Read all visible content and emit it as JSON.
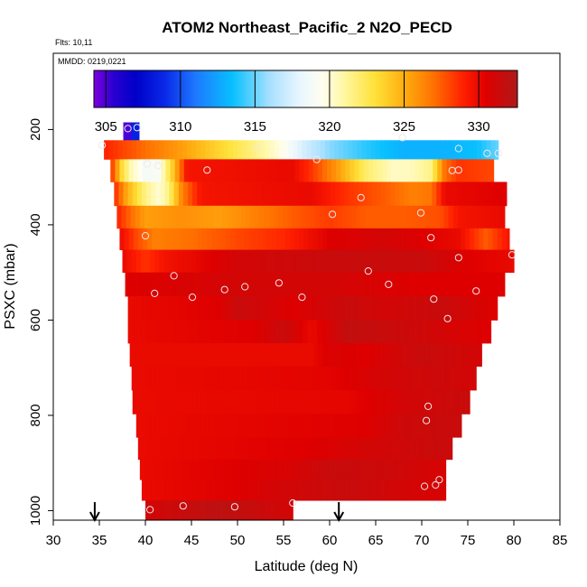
{
  "chart_data": {
    "type": "heatmap",
    "title": "ATOM2 Northeast_Pacific_2 N2O_PECD",
    "flights_note": "Flts: 10,11",
    "date_note": "MMDD: 0219,0221",
    "xlabel": "Latitude (deg N)",
    "ylabel": "PSXC (mbar)",
    "xlim": [
      30,
      85
    ],
    "ylim": [
      1020,
      40
    ],
    "x_ticks": [
      "30",
      "35",
      "40",
      "45",
      "50",
      "55",
      "60",
      "65",
      "70",
      "75",
      "80",
      "85"
    ],
    "y_ticks": [
      "200",
      "400",
      "600",
      "800",
      "1000"
    ],
    "colorbar": {
      "range": [
        304.2,
        332.6
      ],
      "ticks": [
        "305",
        "310",
        "315",
        "320",
        "325",
        "330"
      ],
      "stops": [
        {
          "v": 304.2,
          "c": "#7e00e0"
        },
        {
          "v": 305.5,
          "c": "#2a00d0"
        },
        {
          "v": 307.0,
          "c": "#0000c8"
        },
        {
          "v": 309.0,
          "c": "#0a2ae8"
        },
        {
          "v": 311.0,
          "c": "#1e78ff"
        },
        {
          "v": 313.5,
          "c": "#08c0ff"
        },
        {
          "v": 316.0,
          "c": "#a8e0ff"
        },
        {
          "v": 318.0,
          "c": "#e8f6ff"
        },
        {
          "v": 319.5,
          "c": "#fffef0"
        },
        {
          "v": 321.0,
          "c": "#fff7a0"
        },
        {
          "v": 323.0,
          "c": "#ffe23a"
        },
        {
          "v": 325.0,
          "c": "#ffae10"
        },
        {
          "v": 327.0,
          "c": "#ff7000"
        },
        {
          "v": 329.0,
          "c": "#ff1e00"
        },
        {
          "v": 330.5,
          "c": "#de0000"
        },
        {
          "v": 332.6,
          "c": "#b01818"
        }
      ]
    },
    "arrows_latitude": [
      34.5,
      61.0
    ],
    "rows": [
      {
        "p": 205,
        "lats": [
          37.6,
          39.3
        ],
        "vals": [
          305.0,
          308.5
        ]
      },
      {
        "p": 240,
        "lats": [
          35.5,
          78.3
        ],
        "vals": [
          [
            35.5,
            329
          ],
          [
            40,
            327
          ],
          [
            44,
            325.5
          ],
          [
            48,
            323.5
          ],
          [
            52,
            321.5
          ],
          [
            55,
            319.5
          ],
          [
            57,
            317.5
          ],
          [
            60,
            315.5
          ],
          [
            64,
            314
          ],
          [
            68,
            313
          ],
          [
            72,
            313
          ],
          [
            76,
            313.5
          ],
          [
            78.3,
            315
          ]
        ]
      },
      {
        "p": 285,
        "lats": [
          36.2,
          77.8
        ],
        "vals": [
          [
            36.2,
            329
          ],
          [
            37.5,
            323
          ],
          [
            38.5,
            320.5
          ],
          [
            40,
            318.8
          ],
          [
            41.5,
            319.2
          ],
          [
            43,
            324
          ],
          [
            44.5,
            329.5
          ],
          [
            56,
            330
          ],
          [
            58,
            328.5
          ],
          [
            61,
            325.5
          ],
          [
            64,
            322
          ],
          [
            67,
            320.3
          ],
          [
            69,
            320.5
          ],
          [
            71,
            321.5
          ],
          [
            72.5,
            327
          ],
          [
            74,
            328.5
          ],
          [
            77.8,
            328
          ]
        ]
      },
      {
        "p": 335,
        "lats": [
          36.6,
          79.2
        ],
        "vals": [
          [
            36.6,
            329
          ],
          [
            38,
            325
          ],
          [
            40,
            321.5
          ],
          [
            41.5,
            320
          ],
          [
            42.5,
            321.5
          ],
          [
            44,
            326.5
          ],
          [
            46,
            329.5
          ],
          [
            58,
            330
          ],
          [
            62,
            328.5
          ],
          [
            66,
            327.5
          ],
          [
            69,
            326.5
          ],
          [
            71,
            326.8
          ],
          [
            72.5,
            330
          ],
          [
            79.2,
            330.5
          ]
        ]
      },
      {
        "p": 385,
        "lats": [
          36.9,
          79.0
        ],
        "vals": [
          [
            36.9,
            329
          ],
          [
            38.5,
            327
          ],
          [
            40,
            325.5
          ],
          [
            44,
            326
          ],
          [
            48,
            325.5
          ],
          [
            52,
            326.5
          ],
          [
            56,
            327.5
          ],
          [
            60,
            328.3
          ],
          [
            64,
            327.5
          ],
          [
            68,
            327.5
          ],
          [
            72,
            327.8
          ],
          [
            74,
            329.5
          ],
          [
            79.0,
            330
          ]
        ]
      },
      {
        "p": 430,
        "lats": [
          37.2,
          79.5
        ],
        "vals": [
          [
            37.2,
            330
          ],
          [
            39,
            328
          ],
          [
            41,
            326.5
          ],
          [
            45,
            327
          ],
          [
            50,
            328
          ],
          [
            55,
            328.8
          ],
          [
            60,
            330.5
          ],
          [
            66,
            331
          ],
          [
            70,
            330.5
          ],
          [
            74,
            330
          ],
          [
            77,
            327.5
          ],
          [
            79.5,
            329.5
          ]
        ]
      },
      {
        "p": 475,
        "lats": [
          37.5,
          80.0
        ],
        "vals": [
          [
            37.5,
            330
          ],
          [
            40,
            328.5
          ],
          [
            42,
            329.5
          ],
          [
            50,
            331
          ],
          [
            60,
            331.5
          ],
          [
            70,
            331.5
          ],
          [
            75,
            330.5
          ],
          [
            80.0,
            330
          ]
        ]
      },
      {
        "p": 525,
        "lats": [
          37.8,
          79.0
        ],
        "vals": [
          [
            37.8,
            330.5
          ],
          [
            50,
            331
          ],
          [
            60,
            331
          ],
          [
            70,
            330.5
          ],
          [
            79.0,
            330.5
          ]
        ]
      },
      {
        "p": 575,
        "lats": [
          38.1,
          78.2
        ],
        "vals": [
          [
            38.1,
            330
          ],
          [
            48,
            330.5
          ],
          [
            50,
            331.5
          ],
          [
            56,
            330.5
          ],
          [
            62,
            331.5
          ],
          [
            66,
            331
          ],
          [
            72,
            331.5
          ],
          [
            78.2,
            330.5
          ]
        ]
      },
      {
        "p": 625,
        "lats": [
          38.1,
          77.5
        ],
        "vals": [
          [
            38.1,
            330
          ],
          [
            52,
            330.5
          ],
          [
            55,
            331.5
          ],
          [
            58,
            330
          ],
          [
            62,
            331.8
          ],
          [
            70,
            331.2
          ],
          [
            77.5,
            330.5
          ]
        ]
      },
      {
        "p": 672,
        "lats": [
          38.3,
          76.5
        ],
        "vals": [
          [
            38.3,
            330
          ],
          [
            58,
            330
          ],
          [
            60,
            330.7
          ],
          [
            64,
            330.5
          ],
          [
            70,
            331.5
          ],
          [
            76.5,
            331
          ]
        ]
      },
      {
        "p": 722,
        "lats": [
          38.5,
          75.9
        ],
        "vals": [
          [
            38.5,
            330
          ],
          [
            60,
            330.3
          ],
          [
            66,
            331
          ],
          [
            72,
            331.3
          ],
          [
            75.9,
            331
          ]
        ]
      },
      {
        "p": 772,
        "lats": [
          38.6,
          75.2
        ],
        "vals": [
          [
            38.6,
            330
          ],
          [
            62,
            330.2
          ],
          [
            68,
            331
          ],
          [
            75.2,
            331.5
          ]
        ]
      },
      {
        "p": 822,
        "lats": [
          39.0,
          74.3
        ],
        "vals": [
          [
            39.0,
            330
          ],
          [
            64,
            330.5
          ],
          [
            68,
            331.3
          ],
          [
            74.3,
            331.5
          ]
        ]
      },
      {
        "p": 870,
        "lats": [
          39.2,
          73.3
        ],
        "vals": [
          [
            39.2,
            330
          ],
          [
            58,
            330.5
          ],
          [
            64,
            331
          ],
          [
            73.3,
            331.5
          ]
        ]
      },
      {
        "p": 915,
        "lats": [
          39.4,
          72.6
        ],
        "vals": [
          [
            39.4,
            330
          ],
          [
            56,
            330.8
          ],
          [
            60,
            331.5
          ],
          [
            66,
            331.3
          ],
          [
            72.6,
            330.8
          ]
        ]
      },
      {
        "p": 955,
        "lats": [
          39.6,
          72.6
        ],
        "vals": [
          [
            39.6,
            330
          ],
          [
            50,
            330.5
          ],
          [
            54,
            331
          ],
          [
            62,
            331.5
          ],
          [
            68,
            331
          ],
          [
            72.6,
            330.8
          ]
        ]
      },
      {
        "p": 1002,
        "lats": [
          40.0,
          56.0
        ],
        "vals": [
          [
            40.0,
            331
          ],
          [
            44,
            331.5
          ],
          [
            48,
            332
          ],
          [
            52,
            331.5
          ],
          [
            56.0,
            331
          ]
        ]
      }
    ],
    "samples": [
      [
        38.1,
        198
      ],
      [
        39.1,
        196
      ],
      [
        35.3,
        233
      ],
      [
        52.2,
        238
      ],
      [
        67.9,
        217
      ],
      [
        74.0,
        240
      ],
      [
        77.1,
        250
      ],
      [
        78.3,
        250
      ],
      [
        58.6,
        263
      ],
      [
        40.2,
        272
      ],
      [
        41.4,
        276
      ],
      [
        46.7,
        285
      ],
      [
        73.3,
        286
      ],
      [
        74.0,
        285
      ],
      [
        63.4,
        343
      ],
      [
        60.3,
        378
      ],
      [
        69.9,
        375
      ],
      [
        40.0,
        423
      ],
      [
        71.0,
        427
      ],
      [
        74.0,
        469
      ],
      [
        79.8,
        463
      ],
      [
        43.1,
        507
      ],
      [
        64.2,
        497
      ],
      [
        41.0,
        544
      ],
      [
        45.1,
        552
      ],
      [
        48.6,
        536
      ],
      [
        50.8,
        530
      ],
      [
        54.5,
        522
      ],
      [
        57.0,
        552
      ],
      [
        66.4,
        525
      ],
      [
        71.3,
        556
      ],
      [
        72.8,
        597
      ],
      [
        75.9,
        539
      ],
      [
        70.7,
        781
      ],
      [
        70.5,
        811
      ],
      [
        70.3,
        949
      ],
      [
        71.5,
        946
      ],
      [
        71.9,
        935
      ],
      [
        40.5,
        998
      ],
      [
        44.1,
        990
      ],
      [
        49.7,
        992
      ],
      [
        56.0,
        984
      ]
    ]
  }
}
